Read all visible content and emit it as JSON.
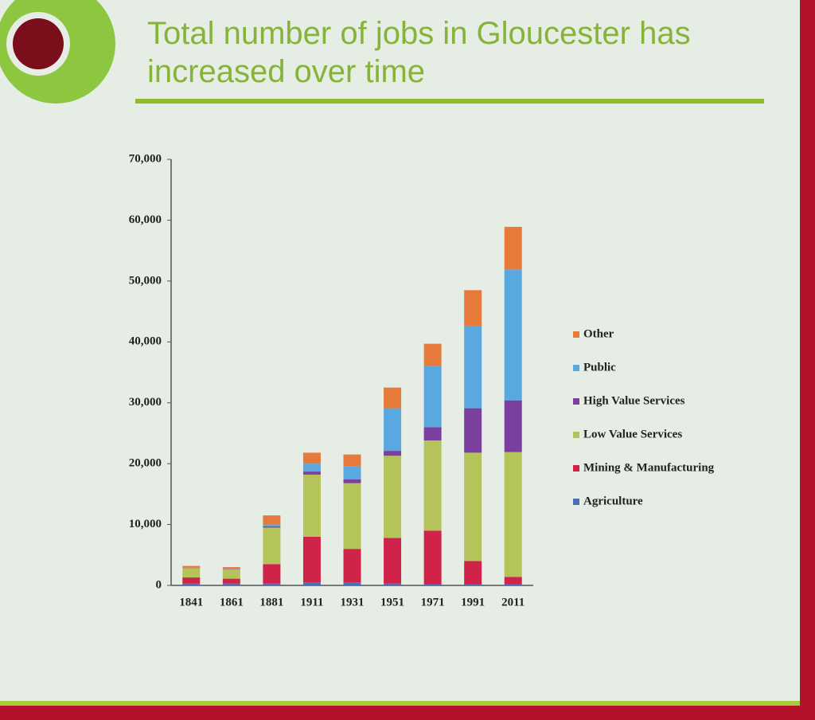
{
  "chart_data": {
    "type": "stacked-bar",
    "title": "Total number of jobs in Gloucester has increased over time",
    "categories": [
      "1841",
      "1861",
      "1881",
      "1911",
      "1931",
      "1951",
      "1971",
      "1991",
      "2011"
    ],
    "series": [
      {
        "name": "Agriculture",
        "color": "#4a6fb5",
        "values": [
          300,
          300,
          300,
          500,
          500,
          300,
          200,
          200,
          200
        ]
      },
      {
        "name": "Mining & Manufacturing",
        "color": "#d0234a",
        "values": [
          1000,
          800,
          3200,
          7500,
          5500,
          7500,
          8800,
          3800,
          1200
        ]
      },
      {
        "name": "Low Value Services",
        "color": "#b5c45a",
        "values": [
          1500,
          1500,
          6000,
          10200,
          10800,
          13500,
          14800,
          17800,
          20500
        ]
      },
      {
        "name": "High Value Services",
        "color": "#7b3fa0",
        "values": [
          50,
          50,
          200,
          500,
          600,
          800,
          2200,
          7300,
          8500
        ]
      },
      {
        "name": "Public",
        "color": "#5aa8e0",
        "values": [
          50,
          50,
          300,
          1300,
          2200,
          7000,
          10000,
          13500,
          21500
        ]
      },
      {
        "name": "Other",
        "color": "#e57a3a",
        "values": [
          300,
          300,
          1500,
          1800,
          1900,
          3400,
          3700,
          5900,
          7000
        ]
      }
    ],
    "ylim": [
      0,
      70000
    ],
    "yticks": [
      0,
      {
        "value": 10000,
        "label": "10,000"
      },
      {
        "value": 20000,
        "label": "20,000"
      },
      {
        "value": 30000,
        "label": "30,000"
      },
      {
        "value": 40000,
        "label": "40,000"
      },
      {
        "value": 50000,
        "label": "50,000"
      },
      {
        "value": 60000,
        "label": "60,000"
      },
      {
        "value": 70000,
        "label": "70,000"
      }
    ],
    "legend": "right"
  }
}
